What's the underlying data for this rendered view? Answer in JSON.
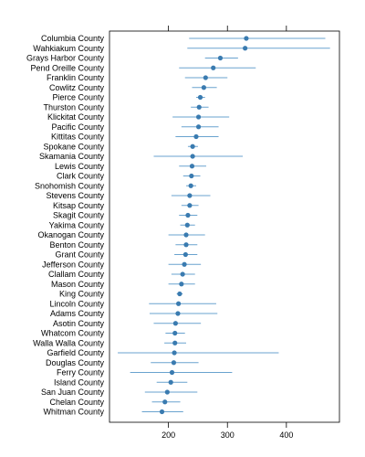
{
  "chart_data": {
    "type": "scatter",
    "subtype": "dot-plot-with-error-bars",
    "title": "",
    "xlabel": "",
    "ylabel": "",
    "xlim": [
      100,
      490
    ],
    "xticks": [
      200,
      300,
      400
    ],
    "grid": false,
    "legend": "none",
    "colors": {
      "point": "#3a7bb0",
      "error_bar": "#6aa3cf",
      "frame": "#000000"
    },
    "categories": [
      "Columbia County",
      "Wahkiakum County",
      "Grays Harbor County",
      "Pend Oreille County",
      "Franklin County",
      "Cowlitz County",
      "Pierce County",
      "Thurston County",
      "Klickitat County",
      "Pacific County",
      "Kittitas County",
      "Spokane County",
      "Skamania County",
      "Lewis County",
      "Clark County",
      "Snohomish County",
      "Stevens County",
      "Kitsap County",
      "Skagit County",
      "Yakima County",
      "Okanogan County",
      "Benton County",
      "Grant County",
      "Jefferson County",
      "Clallam County",
      "Mason County",
      "King County",
      "Lincoln County",
      "Adams County",
      "Asotin County",
      "Whatcom County",
      "Walla Walla County",
      "Garfield County",
      "Douglas County",
      "Ferry County",
      "Island County",
      "San Juan County",
      "Chelan County",
      "Whitman County"
    ],
    "values": [
      332,
      330,
      288,
      276,
      263,
      260,
      254,
      252,
      251,
      251,
      247,
      241,
      241,
      240,
      239,
      238,
      236,
      236,
      233,
      232,
      230,
      230,
      229,
      227,
      224,
      222,
      219,
      217,
      216,
      212,
      211,
      211,
      210,
      209,
      206,
      204,
      198,
      194,
      189
    ],
    "lower": [
      235,
      232,
      262,
      218,
      228,
      240,
      247,
      238,
      207,
      222,
      212,
      233,
      175,
      218,
      225,
      230,
      205,
      222,
      218,
      220,
      200,
      212,
      210,
      200,
      205,
      200,
      214,
      167,
      168,
      175,
      195,
      193,
      114,
      170,
      135,
      180,
      160,
      172,
      155
    ],
    "upper": [
      466,
      474,
      318,
      348,
      300,
      282,
      262,
      268,
      303,
      285,
      285,
      250,
      326,
      264,
      254,
      247,
      271,
      251,
      249,
      245,
      262,
      249,
      249,
      255,
      245,
      245,
      224,
      281,
      283,
      255,
      228,
      230,
      387,
      251,
      308,
      232,
      249,
      220,
      225
    ]
  }
}
